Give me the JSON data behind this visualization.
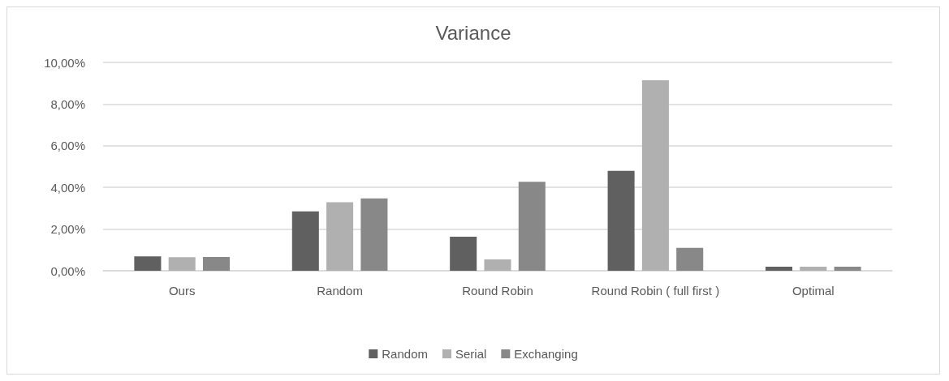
{
  "chart_data": {
    "type": "bar",
    "title": "Variance",
    "categories": [
      "Ours",
      "Random",
      "Round Robin",
      "Round Robin ( full first )",
      "Optimal"
    ],
    "series": [
      {
        "name": "Random",
        "color": "#606060",
        "values": [
          0.69,
          2.85,
          1.63,
          4.8,
          0.19
        ]
      },
      {
        "name": "Serial",
        "color": "#b0b0b0",
        "values": [
          0.65,
          3.29,
          0.54,
          9.14,
          0.19
        ]
      },
      {
        "name": "Exchanging",
        "color": "#888888",
        "values": [
          0.66,
          3.47,
          4.27,
          1.1,
          0.19
        ]
      }
    ],
    "ylim": [
      0,
      10
    ],
    "yticks": [
      {
        "value": 0,
        "label": "0,00%"
      },
      {
        "value": 2,
        "label": "2,00%"
      },
      {
        "value": 4,
        "label": "4,00%"
      },
      {
        "value": 6,
        "label": "6,00%"
      },
      {
        "value": 8,
        "label": "8,00%"
      },
      {
        "value": 10,
        "label": "10,00%"
      }
    ],
    "grid": "y",
    "legend": "bottom"
  }
}
